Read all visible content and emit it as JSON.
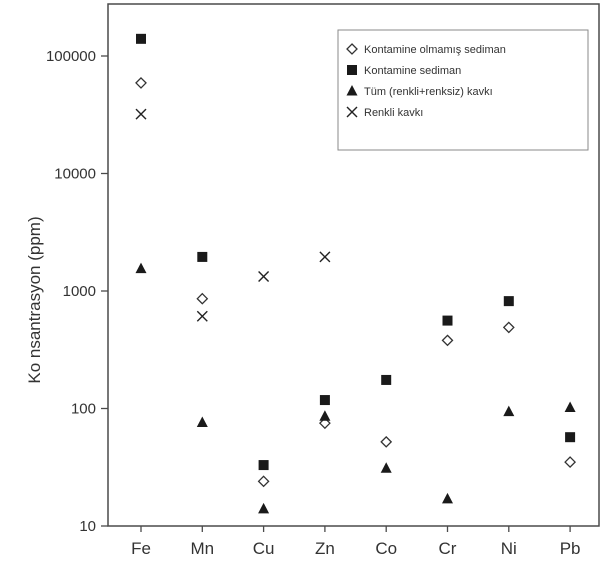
{
  "chart_data": {
    "type": "scatter",
    "title": "",
    "xlabel": "",
    "ylabel": "Ko nsantrasyon (ppm)",
    "yscale": "log",
    "ylim": [
      10,
      200000
    ],
    "yticks": [
      "10",
      "100",
      "1000",
      "10000",
      "100000"
    ],
    "ytick_values": [
      10,
      100,
      1000,
      10000,
      100000
    ],
    "categories": [
      "Fe",
      "Mn",
      "Cu",
      "Zn",
      "Co",
      "Cr",
      "Ni",
      "Pb"
    ],
    "legend_position": "top-right",
    "grid": false,
    "series": [
      {
        "name": "Kontamine olmamış sediman",
        "marker": "diamond-open",
        "values": [
          59000,
          860,
          24,
          75,
          52,
          380,
          490,
          35
        ]
      },
      {
        "name": "Kontamine sediman",
        "marker": "square-filled",
        "values": [
          140000,
          1950,
          33,
          118,
          175,
          560,
          820,
          57
        ]
      },
      {
        "name": "Tüm (renkli+renksiz) kavkı",
        "marker": "triangle-filled",
        "values": [
          1550,
          76,
          14,
          86,
          31,
          17,
          94,
          102
        ]
      },
      {
        "name": "Renkli kavkı",
        "marker": "x",
        "values": [
          32000,
          610,
          1330,
          1950,
          null,
          null,
          null,
          null
        ]
      }
    ]
  }
}
